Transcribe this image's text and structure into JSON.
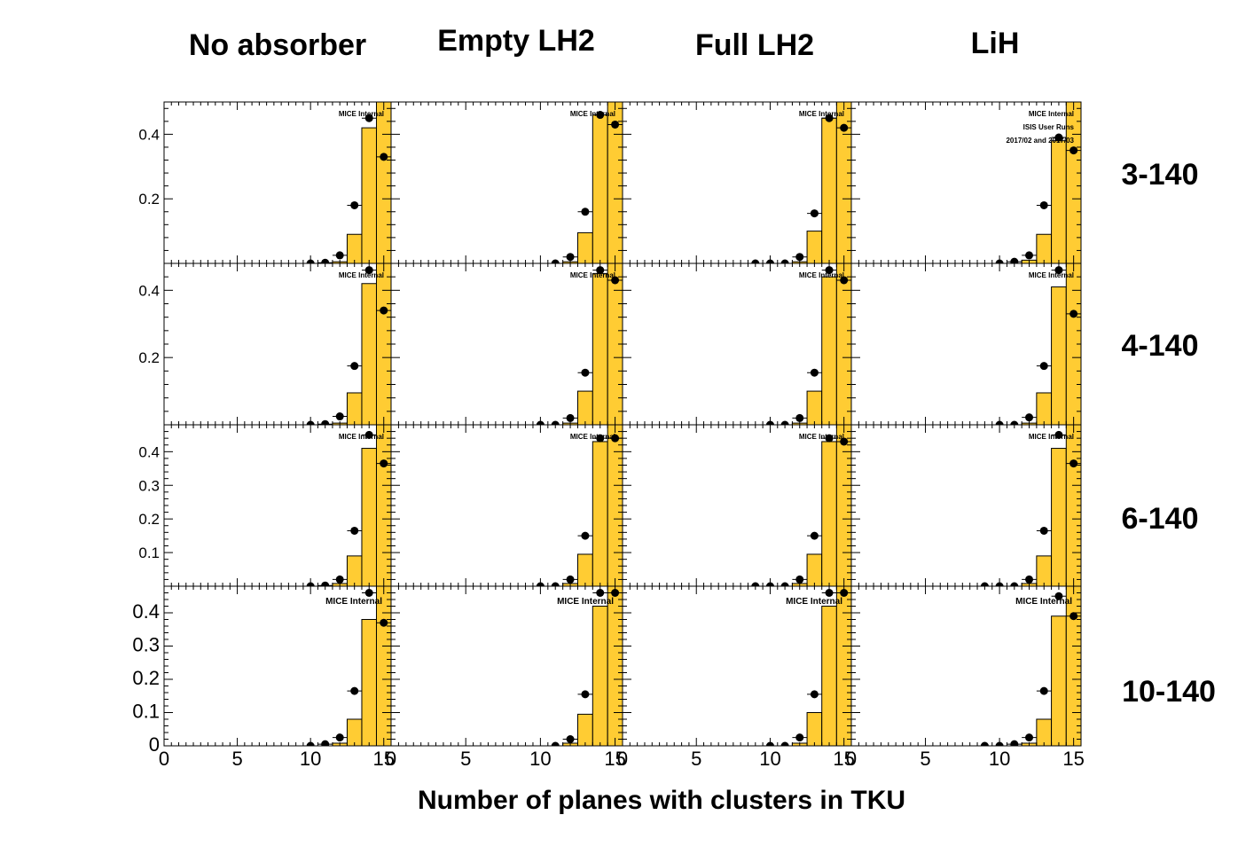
{
  "column_titles": [
    "No absorber",
    "Empty LH2",
    "Full LH2",
    "LiH"
  ],
  "row_titles": [
    "3-140",
    "4-140",
    "6-140",
    "10-140"
  ],
  "x_axis_title": "Number of planes with clusters in TKU",
  "panel_tag": "MICE Internal",
  "extra_tags": [
    "ISIS User Runs",
    "2017/02 and 2017/03"
  ],
  "colors": {
    "mc_fill": "#ffcc33",
    "mc_line": "#000000",
    "data_marker": "#000000",
    "frame": "#000000"
  },
  "chart_data": [
    {
      "type": "bar+scatter",
      "description_row": "3-140",
      "xlim": [
        0,
        15.5
      ],
      "ylim": [
        0,
        0.5
      ],
      "yticks": [
        0.2,
        0.4
      ],
      "ytick_labels": [
        "0.2",
        "0.4"
      ],
      "panels": [
        {
          "column": "No absorber",
          "mc": {
            "x": [
              11,
              12,
              13,
              14,
              15
            ],
            "values": [
              0.0,
              0.005,
              0.09,
              0.42,
              0.5
            ]
          },
          "data": {
            "x": [
              10,
              11,
              12,
              13,
              14,
              15
            ],
            "values": [
              0.0,
              0.002,
              0.025,
              0.18,
              0.45,
              0.33
            ]
          }
        },
        {
          "column": "Empty LH2",
          "mc": {
            "x": [
              11,
              12,
              13,
              14,
              15
            ],
            "values": [
              0.0,
              0.005,
              0.095,
              0.46,
              0.5
            ]
          },
          "data": {
            "x": [
              11,
              12,
              13,
              14,
              15
            ],
            "values": [
              0.0,
              0.02,
              0.16,
              0.46,
              0.43
            ]
          }
        },
        {
          "column": "Full LH2",
          "mc": {
            "x": [
              11,
              12,
              13,
              14,
              15
            ],
            "values": [
              0.0,
              0.005,
              0.1,
              0.45,
              0.5
            ]
          },
          "data": {
            "x": [
              9,
              10,
              11,
              12,
              13,
              14,
              15
            ],
            "values": [
              0.0,
              0.0,
              0.0,
              0.02,
              0.155,
              0.45,
              0.42
            ]
          }
        },
        {
          "column": "LiH",
          "mc": {
            "x": [
              11,
              12,
              13,
              14,
              15
            ],
            "values": [
              0.0,
              0.01,
              0.09,
              0.38,
              0.5
            ]
          },
          "data": {
            "x": [
              10,
              11,
              12,
              13,
              14,
              15
            ],
            "values": [
              0.0,
              0.005,
              0.025,
              0.18,
              0.39,
              0.35
            ]
          }
        }
      ]
    },
    {
      "type": "bar+scatter",
      "description_row": "4-140",
      "xlim": [
        0,
        15.5
      ],
      "ylim": [
        0,
        0.48
      ],
      "yticks": [
        0.2,
        0.4
      ],
      "ytick_labels": [
        "0.2",
        "0.4"
      ],
      "panels": [
        {
          "column": "No absorber",
          "mc": {
            "x": [
              11,
              12,
              13,
              14,
              15
            ],
            "values": [
              0.0,
              0.005,
              0.095,
              0.42,
              0.48
            ]
          },
          "data": {
            "x": [
              10,
              11,
              12,
              13,
              14,
              15
            ],
            "values": [
              0.0,
              0.002,
              0.025,
              0.175,
              0.46,
              0.34
            ]
          }
        },
        {
          "column": "Empty LH2",
          "mc": {
            "x": [
              11,
              12,
              13,
              14,
              15
            ],
            "values": [
              0.0,
              0.005,
              0.1,
              0.45,
              0.48
            ]
          },
          "data": {
            "x": [
              10,
              11,
              12,
              13,
              14,
              15
            ],
            "values": [
              0.0,
              0.0,
              0.02,
              0.155,
              0.46,
              0.43
            ]
          }
        },
        {
          "column": "Full LH2",
          "mc": {
            "x": [
              11,
              12,
              13,
              14,
              15
            ],
            "values": [
              0.0,
              0.005,
              0.1,
              0.44,
              0.48
            ]
          },
          "data": {
            "x": [
              10,
              11,
              12,
              13,
              14,
              15
            ],
            "values": [
              0.0,
              0.0,
              0.02,
              0.155,
              0.46,
              0.43
            ]
          }
        },
        {
          "column": "LiH",
          "mc": {
            "x": [
              11,
              12,
              13,
              14,
              15
            ],
            "values": [
              0.0,
              0.005,
              0.095,
              0.41,
              0.48
            ]
          },
          "data": {
            "x": [
              10,
              11,
              12,
              13,
              14,
              15
            ],
            "values": [
              0.0,
              0.0,
              0.022,
              0.175,
              0.46,
              0.33
            ]
          }
        }
      ]
    },
    {
      "type": "bar+scatter",
      "description_row": "6-140",
      "xlim": [
        0,
        15.5
      ],
      "ylim": [
        0,
        0.48
      ],
      "yticks": [
        0.1,
        0.2,
        0.3,
        0.4
      ],
      "ytick_labels": [
        "0.1",
        "0.2",
        "0.3",
        "0.4"
      ],
      "panels": [
        {
          "column": "No absorber",
          "mc": {
            "x": [
              11,
              12,
              13,
              14,
              15
            ],
            "values": [
              0.0,
              0.008,
              0.09,
              0.41,
              0.48
            ]
          },
          "data": {
            "x": [
              10,
              11,
              12,
              13,
              14,
              15
            ],
            "values": [
              0.0,
              0.002,
              0.02,
              0.165,
              0.45,
              0.365
            ]
          }
        },
        {
          "column": "Empty LH2",
          "mc": {
            "x": [
              11,
              12,
              13,
              14,
              15
            ],
            "values": [
              0.0,
              0.008,
              0.095,
              0.43,
              0.48
            ]
          },
          "data": {
            "x": [
              10,
              11,
              12,
              13,
              14,
              15
            ],
            "values": [
              0.0,
              0.0,
              0.02,
              0.15,
              0.44,
              0.44
            ]
          }
        },
        {
          "column": "Full LH2",
          "mc": {
            "x": [
              11,
              12,
              13,
              14,
              15
            ],
            "values": [
              0.0,
              0.008,
              0.095,
              0.43,
              0.48
            ]
          },
          "data": {
            "x": [
              9,
              10,
              11,
              12,
              13,
              14,
              15
            ],
            "values": [
              0.0,
              0.0,
              0.0,
              0.02,
              0.15,
              0.44,
              0.43
            ]
          }
        },
        {
          "column": "LiH",
          "mc": {
            "x": [
              11,
              12,
              13,
              14,
              15
            ],
            "values": [
              0.0,
              0.008,
              0.09,
              0.41,
              0.48
            ]
          },
          "data": {
            "x": [
              9,
              10,
              11,
              12,
              13,
              14,
              15
            ],
            "values": [
              0.0,
              0.0,
              0.0,
              0.02,
              0.165,
              0.45,
              0.365
            ]
          }
        }
      ]
    },
    {
      "type": "bar+scatter",
      "description_row": "10-140",
      "xlim": [
        0,
        15.5
      ],
      "ylim": [
        0,
        0.48
      ],
      "yticks": [
        0,
        0.1,
        0.2,
        0.3,
        0.4
      ],
      "ytick_labels": [
        "0",
        "0.1",
        "0.2",
        "0.3",
        "0.4"
      ],
      "xticks": [
        0,
        5,
        10,
        15
      ],
      "xtick_labels": [
        "0",
        "5",
        "10",
        "15"
      ],
      "panels": [
        {
          "column": "No absorber",
          "mc": {
            "x": [
              11,
              12,
              13,
              14,
              15
            ],
            "values": [
              0.0,
              0.008,
              0.08,
              0.38,
              0.48
            ]
          },
          "data": {
            "x": [
              10,
              11,
              12,
              13,
              14,
              15
            ],
            "values": [
              0.0,
              0.005,
              0.025,
              0.165,
              0.46,
              0.37
            ]
          }
        },
        {
          "column": "Empty LH2",
          "mc": {
            "x": [
              11,
              12,
              13,
              14,
              15
            ],
            "values": [
              0.0,
              0.008,
              0.095,
              0.42,
              0.48
            ]
          },
          "data": {
            "x": [
              11,
              12,
              13,
              14,
              15
            ],
            "values": [
              0.0,
              0.02,
              0.155,
              0.46,
              0.46
            ]
          }
        },
        {
          "column": "Full LH2",
          "mc": {
            "x": [
              11,
              12,
              13,
              14,
              15
            ],
            "values": [
              0.0,
              0.008,
              0.1,
              0.42,
              0.48
            ]
          },
          "data": {
            "x": [
              10,
              11,
              12,
              13,
              14,
              15
            ],
            "values": [
              0.0,
              0.0,
              0.025,
              0.155,
              0.46,
              0.46
            ]
          }
        },
        {
          "column": "LiH",
          "mc": {
            "x": [
              11,
              12,
              13,
              14,
              15
            ],
            "values": [
              0.0,
              0.008,
              0.08,
              0.39,
              0.48
            ]
          },
          "data": {
            "x": [
              9,
              10,
              11,
              12,
              13,
              14,
              15
            ],
            "values": [
              0.0,
              0.0,
              0.005,
              0.025,
              0.165,
              0.45,
              0.39
            ]
          }
        }
      ]
    }
  ]
}
